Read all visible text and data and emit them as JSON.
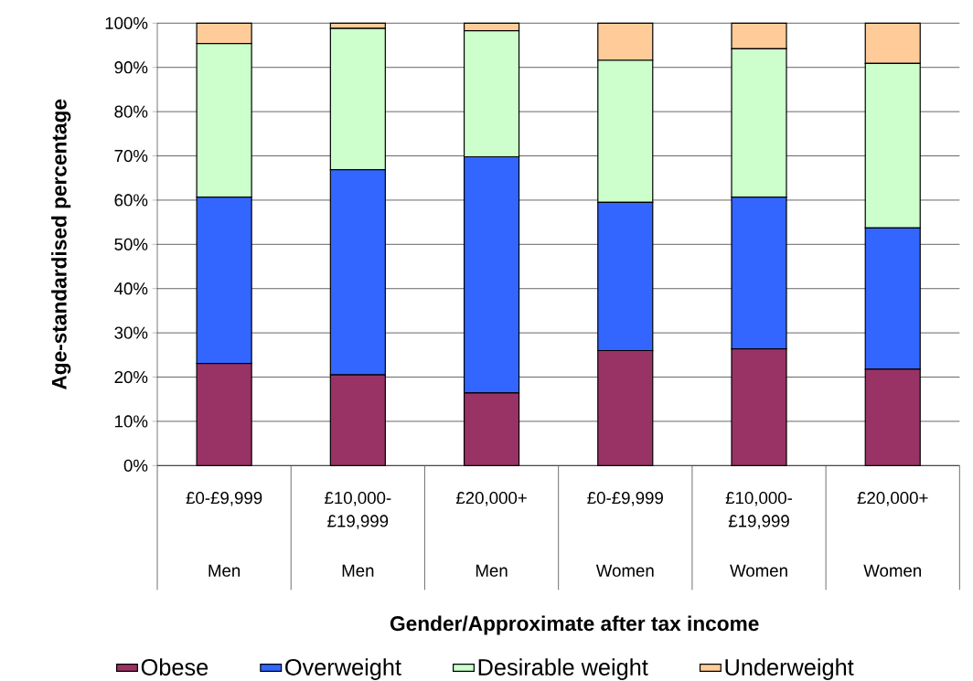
{
  "chart_data": {
    "type": "bar",
    "stacked": true,
    "categories": [
      "£0-£9,999",
      "£10,000-£19,999",
      "£20,000+",
      "£0-£9,999",
      "£10,000-£19,999",
      "£20,000+"
    ],
    "annotations": [
      "Men",
      "Men",
      "Men",
      "Women",
      "Women",
      "Women"
    ],
    "series": [
      {
        "name": "Obese",
        "color": "#993366",
        "values": [
          23.1,
          20.5,
          16.4,
          26.0,
          26.4,
          21.8
        ]
      },
      {
        "name": "Overweight",
        "color": "#3366ff",
        "values": [
          37.6,
          46.4,
          53.4,
          33.5,
          34.3,
          31.9
        ]
      },
      {
        "name": "Desirable weight",
        "color": "#ccffcc",
        "values": [
          34.7,
          31.9,
          28.5,
          32.1,
          33.5,
          37.2
        ]
      },
      {
        "name": "Underweight",
        "color": "#ffcc99",
        "values": [
          4.6,
          1.2,
          1.7,
          8.4,
          5.8,
          9.1
        ]
      }
    ],
    "xlabel": "Gender/Approximate after tax income",
    "ylabel": "Age-standardised percentage",
    "ylim": [
      0,
      100
    ],
    "yticks": [
      {
        "value": 0,
        "label": "0%"
      },
      {
        "value": 10,
        "label": "10%"
      },
      {
        "value": 20,
        "label": "20%"
      },
      {
        "value": 30,
        "label": "30%"
      },
      {
        "value": 40,
        "label": "40%"
      },
      {
        "value": 50,
        "label": "50%"
      },
      {
        "value": 60,
        "label": "60%"
      },
      {
        "value": 70,
        "label": "70%"
      },
      {
        "value": 80,
        "label": "80%"
      },
      {
        "value": 90,
        "label": "90%"
      },
      {
        "value": 100,
        "label": "100%"
      }
    ],
    "grid": "y",
    "legend": "bottom"
  }
}
